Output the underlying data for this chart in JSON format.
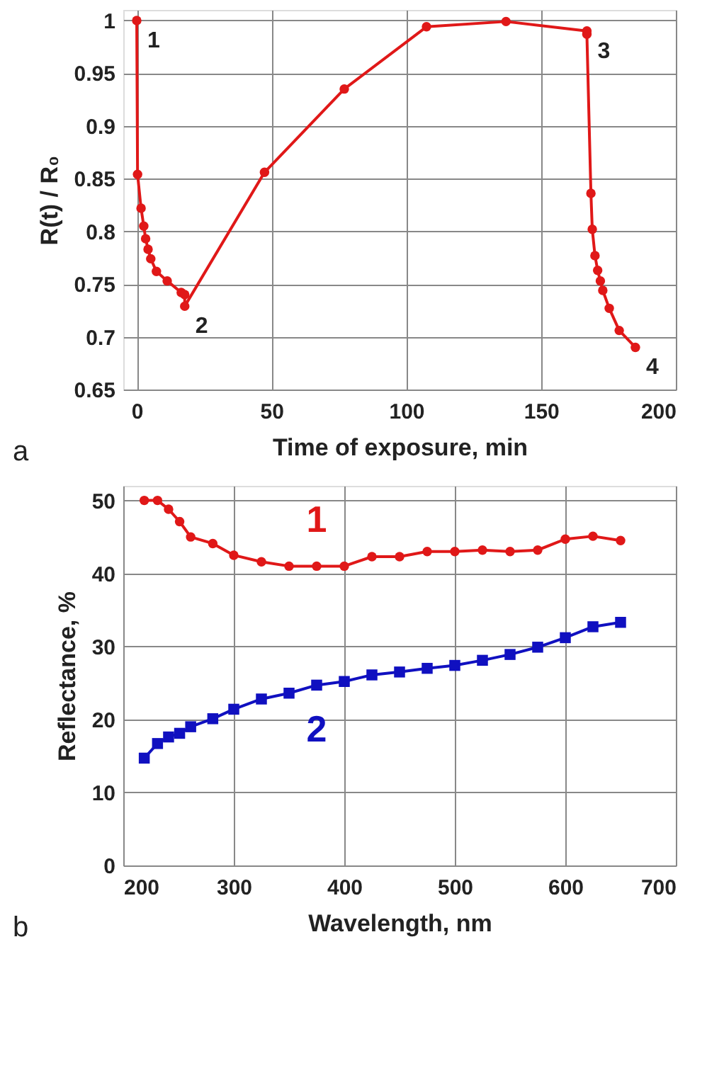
{
  "chart_data": [
    {
      "type": "line",
      "xlabel": "Time of exposure, min",
      "ylabel": "R(t) / R₀",
      "xlim": [
        -5,
        200
      ],
      "ylim": [
        0.65,
        1.01
      ],
      "xticks": [
        0,
        50,
        100,
        150,
        200
      ],
      "yticks": [
        0.65,
        0.7,
        0.75,
        0.8,
        0.85,
        0.9,
        0.95,
        1
      ],
      "grid": true,
      "marker": "circle",
      "line_style": "solid",
      "series": [
        {
          "color": "#e01818",
          "x": [
            0,
            0.3,
            1.6,
            2.6,
            3.3,
            4.2,
            5.2,
            7.3,
            11.3,
            16.5,
            17.8,
            17.8,
            47.4,
            77,
            107.5,
            137,
            167,
            167,
            168.5,
            169,
            170,
            171,
            172,
            172.9,
            175.3,
            179,
            185
          ],
          "values": [
            1.0,
            0.854,
            0.822,
            0.805,
            0.793,
            0.783,
            0.774,
            0.762,
            0.753,
            0.742,
            0.74,
            0.729,
            0.856,
            0.935,
            0.994,
            0.999,
            0.99,
            0.987,
            0.836,
            0.802,
            0.777,
            0.763,
            0.753,
            0.744,
            0.727,
            0.706,
            0.69
          ]
        }
      ],
      "annotations": [
        {
          "text": "1",
          "x": 0,
          "y": 1.0
        },
        {
          "text": "2",
          "x": 17.8,
          "y": 0.729
        },
        {
          "text": "3",
          "x": 167,
          "y": 0.99
        },
        {
          "text": "4",
          "x": 185,
          "y": 0.69
        },
        "a"
      ]
    },
    {
      "type": "line",
      "xlabel": "Wavelength, nm",
      "ylabel": "Reflectance, %",
      "xlim": [
        200,
        700
      ],
      "ylim": [
        0,
        52
      ],
      "xticks": [
        200,
        300,
        400,
        500,
        600,
        700
      ],
      "yticks": [
        0,
        10,
        20,
        30,
        40,
        50
      ],
      "grid": true,
      "line_style": "solid",
      "x": [
        219,
        231,
        241,
        251,
        261,
        281,
        300,
        325,
        350,
        375,
        400,
        425,
        450,
        475,
        500,
        525,
        550,
        575,
        600,
        625,
        650
      ],
      "series": [
        {
          "name": "1",
          "color": "#e01818",
          "marker": "circle",
          "values": [
            50,
            50,
            48.8,
            47.1,
            45.0,
            44.1,
            42.5,
            41.6,
            41.0,
            41.0,
            41.0,
            42.3,
            42.3,
            43.0,
            43.0,
            43.2,
            43.0,
            43.2,
            44.7,
            45.1,
            44.5
          ]
        },
        {
          "name": "2",
          "color": "#1010c0",
          "marker": "square",
          "values": [
            14.7,
            16.7,
            17.6,
            18.1,
            19.0,
            20.1,
            21.4,
            22.8,
            23.6,
            24.7,
            25.2,
            26.1,
            26.5,
            27.0,
            27.4,
            28.1,
            28.9,
            29.9,
            31.2,
            32.7,
            33.3
          ]
        }
      ],
      "annotations": [
        "b"
      ]
    }
  ]
}
